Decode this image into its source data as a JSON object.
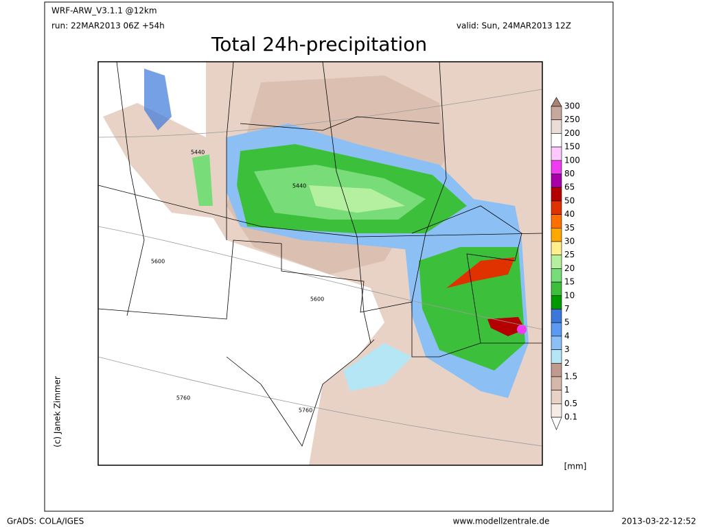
{
  "header": {
    "model": "WRF-ARW_V3.1.1 @12km",
    "run": "run: 22MAR2013 06Z +54h",
    "valid": "valid: Sun, 24MAR2013 12Z",
    "title": "Total 24h-precipitation"
  },
  "map": {
    "contour_labels": [
      "5440",
      "5440",
      "5600",
      "5600",
      "5760",
      "5760"
    ],
    "credit": "(c) Janek Zimmer"
  },
  "colorbar": {
    "levels": [
      "300",
      "250",
      "200",
      "150",
      "100",
      "80",
      "65",
      "50",
      "40",
      "35",
      "30",
      "25",
      "20",
      "15",
      "10",
      "7",
      "5",
      "4",
      "3",
      "2",
      "1.5",
      "1",
      "0.5",
      "0.1"
    ],
    "colors": [
      "#a88474",
      "#c6a89c",
      "#eadcd6",
      "#ffffff",
      "#ffc8ff",
      "#f03cf0",
      "#a800a8",
      "#b40000",
      "#e03200",
      "#ff6e00",
      "#ffa800",
      "#fff08c",
      "#b4f0a0",
      "#78dc78",
      "#3cc03c",
      "#009a00",
      "#3c78dc",
      "#5a9af0",
      "#8cc0f5",
      "#b4e6f5",
      "#c09a8c",
      "#d6b8aa",
      "#e8d2c6",
      "#f6ece6",
      "#ffffff"
    ],
    "unit": "[mm]"
  },
  "footer": {
    "left": "GrADS: COLA/IGES",
    "center": "www.modellzentrale.de",
    "right": "2013-03-22-12:52"
  }
}
